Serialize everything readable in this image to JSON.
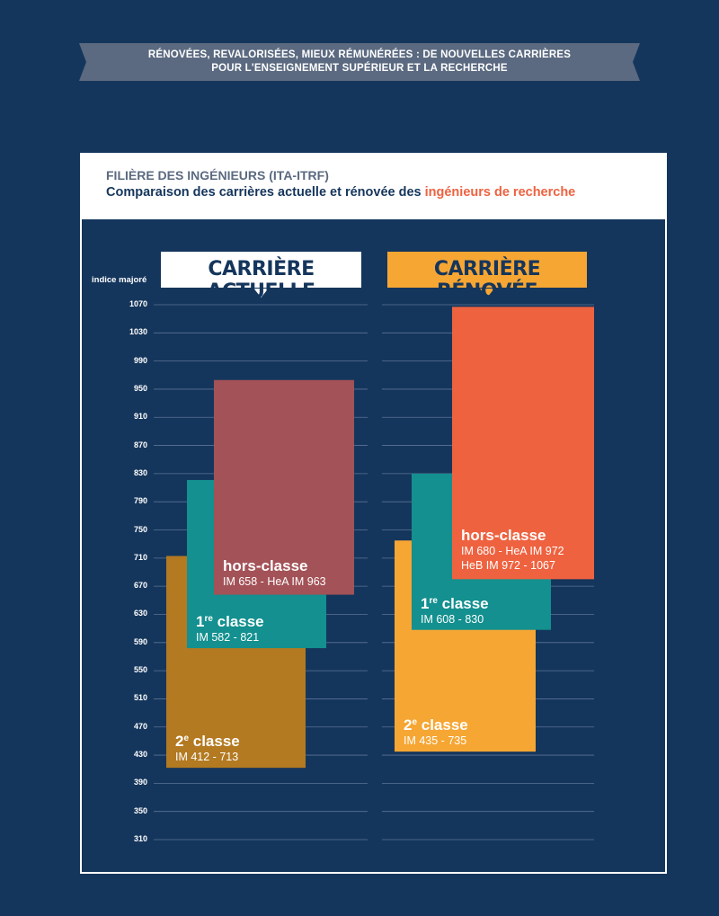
{
  "banner": {
    "line1": "RÉNOVÉES, REVALORISÉES, MIEUX RÉMUNÉRÉES : DE NOUVELLES CARRIÈRES",
    "line2": "POUR L'ENSEIGNEMENT SUPÉRIEUR ET LA RECHERCHE"
  },
  "header": {
    "title": "FILIÈRE DES INGÉNIEURS (ITA-ITRF)",
    "subtitle_prefix": "Comparaison des carrières actuelle et rénovée des ",
    "subtitle_highlight": "ingénieurs de recherche"
  },
  "colors": {
    "background": "#15365c",
    "accent": "#ee6240",
    "second_class_current": "#b37a22",
    "first_class_current": "#13908f",
    "hors_classe_current": "#a35257",
    "second_class_renovated": "#f6a633",
    "first_class_renovated": "#13908f",
    "hors_classe_renovated": "#ee6240"
  },
  "chart_data": {
    "type": "bar",
    "ylabel": "indice majoré",
    "yticks": [
      1070,
      1030,
      990,
      950,
      910,
      870,
      830,
      790,
      750,
      710,
      670,
      630,
      590,
      550,
      510,
      470,
      430,
      390,
      350,
      310
    ],
    "ylim": [
      310,
      1070
    ],
    "groups": [
      {
        "title": "CARRIÈRE ACTUELLE",
        "bars": [
          {
            "grade": "2",
            "sup": "e",
            "suffix": " classe",
            "range_text": "IM 412 - 713",
            "ranges": [
              [
                412,
                713
              ]
            ],
            "color": "#b37a22"
          },
          {
            "grade": "1",
            "sup": "re",
            "suffix": " classe",
            "range_text": "IM 582 - 821",
            "ranges": [
              [
                582,
                821
              ]
            ],
            "color": "#13908f"
          },
          {
            "grade": "hors-classe",
            "sup": "",
            "suffix": "",
            "range_text": "IM 658 - HeA IM 963",
            "ranges": [
              [
                658,
                963
              ]
            ],
            "color": "#a35257"
          }
        ]
      },
      {
        "title": "CARRIÈRE RÉNOVÉE",
        "bars": [
          {
            "grade": "2",
            "sup": "e",
            "suffix": " classe",
            "range_text": "IM 435 - 735",
            "ranges": [
              [
                435,
                735
              ]
            ],
            "color": "#f6a633"
          },
          {
            "grade": "1",
            "sup": "re",
            "suffix": " classe",
            "range_text": "IM 608 - 830",
            "ranges": [
              [
                608,
                830
              ]
            ],
            "color": "#13908f"
          },
          {
            "grade": "hors-classe",
            "sup": "",
            "suffix": "",
            "range_text": "IM 680 - HeA IM 972",
            "range_text2": "HeB IM 972 - 1067",
            "ranges": [
              [
                680,
                972
              ],
              [
                972,
                1067
              ]
            ],
            "color": "#ee6240"
          }
        ]
      }
    ]
  }
}
